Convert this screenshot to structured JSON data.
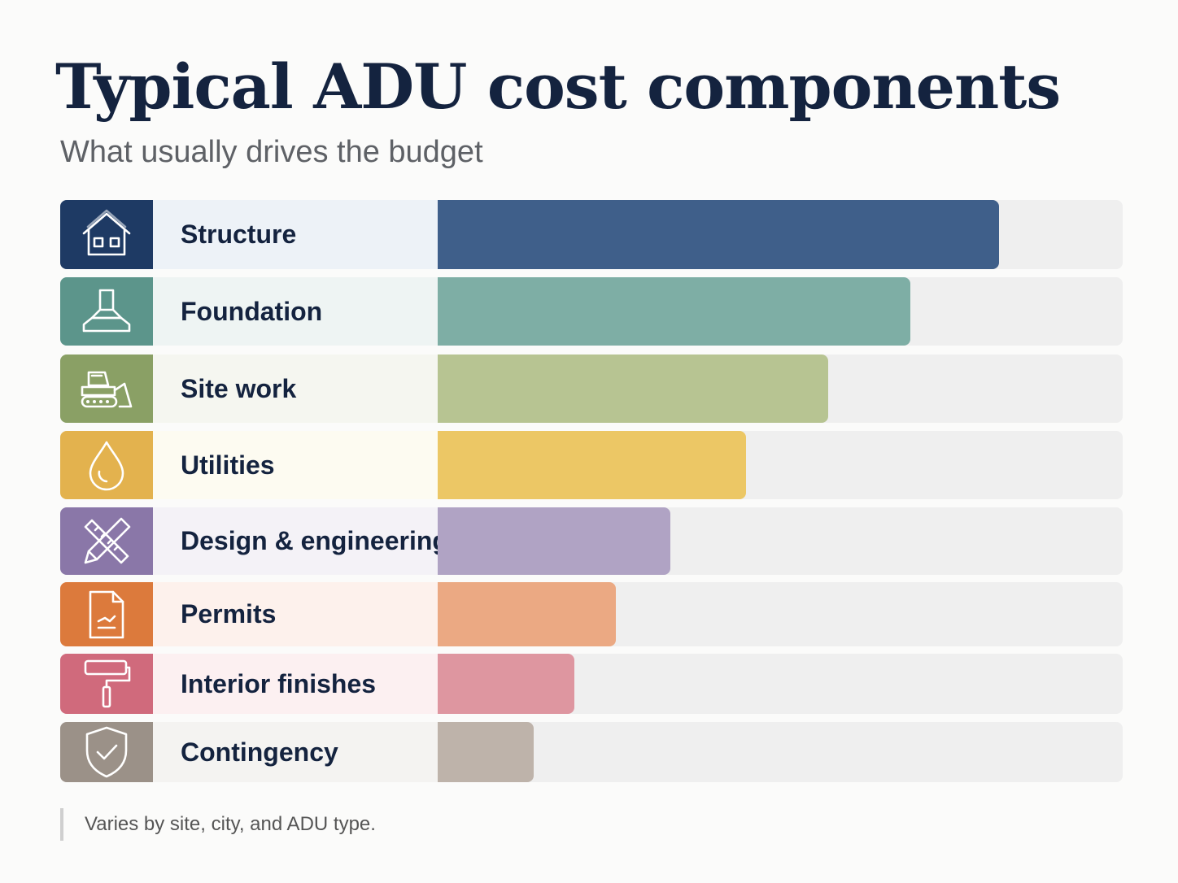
{
  "chart_data": {
    "type": "bar",
    "orientation": "horizontal",
    "title": "Typical ADU cost components",
    "subtitle": "What usually drives the budget",
    "categories": [
      "Structure",
      "Foundation",
      "Site work",
      "Utilities",
      "Design & engineering",
      "Permits",
      "Interior finishes",
      "Contingency"
    ],
    "values": [
      82,
      69,
      57,
      45,
      34,
      26,
      20,
      14
    ],
    "xlim": [
      0,
      100
    ],
    "grid": false,
    "value_labels": false,
    "colors": [
      "#3f5f8a",
      "#7eaea5",
      "#b7c492",
      "#ecc765",
      "#b0a3c4",
      "#eba983",
      "#de96a0",
      "#beb3aa"
    ],
    "icon_colors": [
      "#1e3a64",
      "#5c958b",
      "#8aa065",
      "#e3b24e",
      "#8a77a8",
      "#dc7a3c",
      "#d06a7c",
      "#9b9188"
    ],
    "panel_colors": [
      "#edf2f7",
      "#eef4f3",
      "#f5f6f0",
      "#fdfbf1",
      "#f4f2f7",
      "#fdf1ec",
      "#fcf0f1",
      "#f4f3f1"
    ],
    "icons": [
      "house-icon",
      "foundation-icon",
      "bulldozer-icon",
      "water-drop-icon",
      "ruler-pencil-icon",
      "document-icon",
      "paint-roller-icon",
      "shield-check-icon"
    ],
    "footnote": "Varies by site, city, and ADU type."
  }
}
